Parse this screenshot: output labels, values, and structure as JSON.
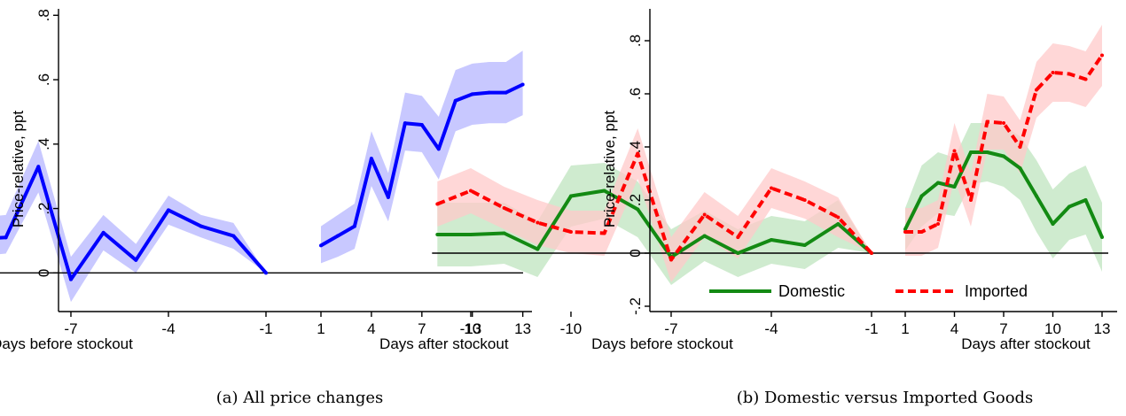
{
  "chart_data": [
    {
      "type": "line",
      "panel_caption": "(a) All price changes",
      "ylabel": "Price-relative, ppt",
      "xlabel_left": "Days before stockout",
      "xlabel_right": "Days after stockout",
      "ylim": [
        -0.12,
        0.82
      ],
      "y_ticks": [
        0,
        0.2,
        0.4,
        0.6,
        0.8
      ],
      "y_tick_labels": [
        "0",
        ".2",
        ".4",
        ".6",
        ".8"
      ],
      "x_ticks": [
        -13,
        -10,
        -7,
        -4,
        -1,
        1,
        4,
        7,
        10,
        13
      ],
      "x_tick_labels": [
        "-13",
        "-10",
        "-7",
        "-4",
        "-1",
        "1",
        "4",
        "7",
        "10",
        "13"
      ],
      "grid": false,
      "reference_line": 0,
      "series": [
        {
          "color": "#0000ff",
          "band_color": "#c8c8ff",
          "segments": [
            {
              "x": [
                -14,
                -13,
                -12,
                -11,
                -10,
                -9,
                -8,
                -7,
                -6,
                -5,
                -4,
                -3,
                -2,
                -1
              ],
              "y": [
                0.16,
                0.2,
                0.14,
                0.085,
                0.105,
                0.11,
                0.33,
                -0.02,
                0.125,
                0.04,
                0.195,
                0.145,
                0.115,
                0.0
              ],
              "lower": [
                0.09,
                0.13,
                0.09,
                0.05,
                0.05,
                0.06,
                0.25,
                -0.09,
                0.07,
                0.0,
                0.15,
                0.11,
                0.075,
                0.0
              ],
              "upper": [
                0.23,
                0.27,
                0.19,
                0.13,
                0.17,
                0.18,
                0.41,
                0.05,
                0.18,
                0.09,
                0.24,
                0.18,
                0.155,
                0.0
              ]
            },
            {
              "x": [
                1,
                2,
                3,
                4,
                5,
                6,
                7,
                8,
                9,
                10,
                11,
                12,
                13
              ],
              "y": [
                0.085,
                0.115,
                0.145,
                0.355,
                0.235,
                0.465,
                0.46,
                0.385,
                0.535,
                0.555,
                0.56,
                0.56,
                0.585
              ],
              "lower": [
                0.03,
                0.05,
                0.075,
                0.27,
                0.16,
                0.38,
                0.375,
                0.29,
                0.44,
                0.46,
                0.465,
                0.465,
                0.49
              ],
              "upper": [
                0.145,
                0.18,
                0.215,
                0.44,
                0.31,
                0.56,
                0.55,
                0.485,
                0.63,
                0.65,
                0.655,
                0.655,
                0.69
              ]
            }
          ]
        }
      ]
    },
    {
      "type": "line",
      "panel_caption": "(b) Domestic versus Imported Goods",
      "ylabel": "Price-relative, ppt",
      "xlabel_left": "Days before stockout",
      "xlabel_right": "Days after stockout",
      "ylim": [
        -0.22,
        0.92
      ],
      "y_ticks": [
        -0.2,
        0,
        0.2,
        0.4,
        0.6,
        0.8
      ],
      "y_tick_labels": [
        "-.2",
        "0",
        ".2",
        ".4",
        ".6",
        ".8"
      ],
      "x_ticks": [
        -13,
        -10,
        -7,
        -4,
        -1,
        1,
        4,
        7,
        10,
        13
      ],
      "x_tick_labels": [
        "-13",
        "-10",
        "-7",
        "-4",
        "-1",
        "1",
        "4",
        "7",
        "10",
        "13"
      ],
      "grid": false,
      "reference_line": 0,
      "legend": {
        "placement": "bottom-inside"
      },
      "series": [
        {
          "name": "Domestic",
          "style": "solid",
          "color": "#138a13",
          "band_color": "#bfe4bf",
          "segments": [
            {
              "x": [
                -14,
                -13,
                -12,
                -11,
                -10,
                -9,
                -8,
                -7,
                -6,
                -5,
                -4,
                -3,
                -2,
                -1
              ],
              "y": [
                0.07,
                0.07,
                0.075,
                0.015,
                0.215,
                0.235,
                0.165,
                -0.015,
                0.065,
                0.0,
                0.05,
                0.03,
                0.11,
                0.0
              ],
              "lower": [
                -0.05,
                -0.05,
                -0.04,
                -0.09,
                0.1,
                0.13,
                0.06,
                -0.12,
                -0.03,
                -0.09,
                -0.04,
                -0.06,
                0.02,
                0.0
              ],
              "upper": [
                0.19,
                0.19,
                0.19,
                0.12,
                0.33,
                0.34,
                0.27,
                0.09,
                0.16,
                0.09,
                0.14,
                0.12,
                0.2,
                0.0
              ]
            },
            {
              "x": [
                1,
                2,
                3,
                4,
                5,
                6,
                7,
                8,
                9,
                10,
                11,
                12,
                13
              ],
              "y": [
                0.09,
                0.215,
                0.265,
                0.25,
                0.38,
                0.38,
                0.365,
                0.32,
                0.215,
                0.11,
                0.175,
                0.2,
                0.06
              ],
              "lower": [
                0.01,
                0.1,
                0.15,
                0.14,
                0.26,
                0.27,
                0.25,
                0.2,
                0.08,
                -0.02,
                0.05,
                0.07,
                -0.07
              ],
              "upper": [
                0.17,
                0.33,
                0.38,
                0.36,
                0.49,
                0.49,
                0.48,
                0.44,
                0.35,
                0.24,
                0.3,
                0.33,
                0.19
              ]
            }
          ]
        },
        {
          "name": "Imported",
          "style": "dashed",
          "color": "#ff0000",
          "band_color": "#ffc9c9",
          "segments": [
            {
              "x": [
                -14,
                -13,
                -12,
                -11,
                -10,
                -9,
                -8,
                -7,
                -6,
                -5,
                -4,
                -3,
                -2,
                -1
              ],
              "y": [
                0.185,
                0.235,
                0.17,
                0.115,
                0.08,
                0.075,
                0.375,
                -0.025,
                0.145,
                0.06,
                0.245,
                0.2,
                0.135,
                0.0
              ],
              "lower": [
                0.1,
                0.15,
                0.09,
                0.03,
                0.0,
                -0.01,
                0.28,
                -0.11,
                0.06,
                -0.02,
                0.17,
                0.13,
                0.06,
                0.0
              ],
              "upper": [
                0.27,
                0.32,
                0.25,
                0.2,
                0.16,
                0.16,
                0.47,
                0.06,
                0.23,
                0.14,
                0.32,
                0.27,
                0.21,
                0.0
              ]
            },
            {
              "x": [
                1,
                2,
                3,
                4,
                5,
                6,
                7,
                8,
                9,
                10,
                11,
                12,
                13
              ],
              "y": [
                0.08,
                0.08,
                0.11,
                0.385,
                0.2,
                0.495,
                0.49,
                0.4,
                0.615,
                0.68,
                0.675,
                0.655,
                0.745
              ],
              "lower": [
                -0.01,
                -0.01,
                0.02,
                0.28,
                0.1,
                0.39,
                0.39,
                0.3,
                0.51,
                0.57,
                0.57,
                0.55,
                0.63
              ],
              "upper": [
                0.17,
                0.17,
                0.2,
                0.49,
                0.3,
                0.6,
                0.59,
                0.5,
                0.72,
                0.79,
                0.78,
                0.76,
                0.86
              ]
            }
          ]
        }
      ]
    }
  ]
}
